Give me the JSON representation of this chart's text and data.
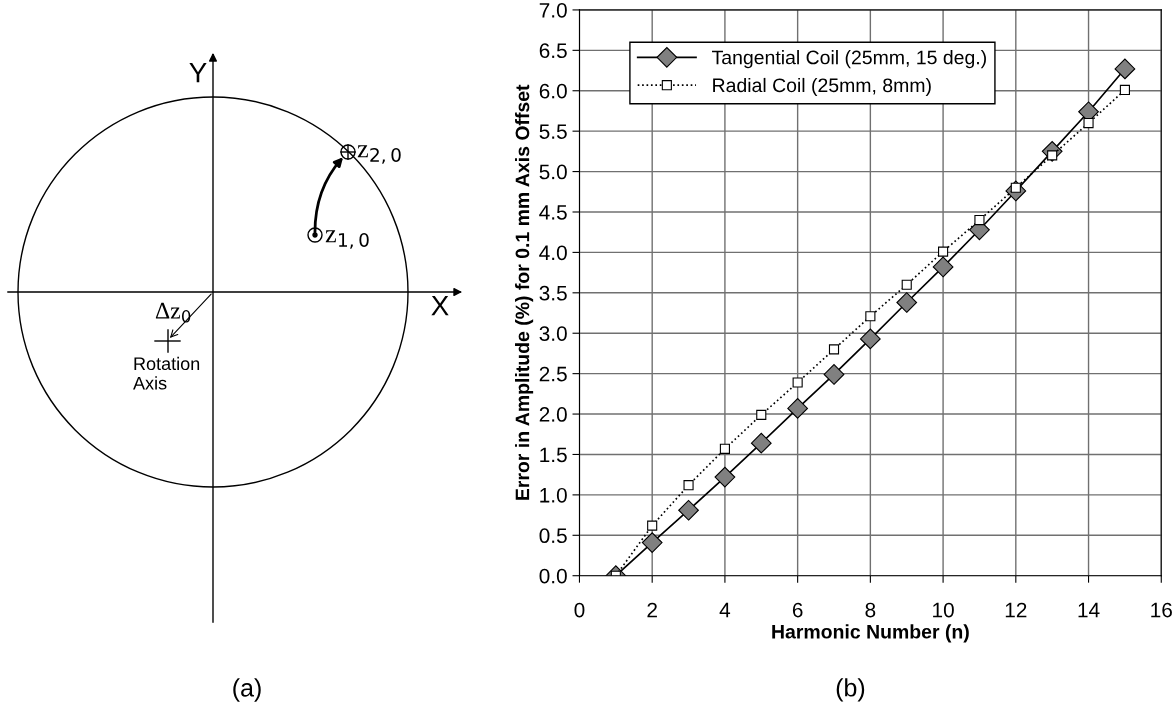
{
  "chart_data": [
    {
      "type": "other",
      "annotations": [
        "Y",
        "X",
        "z$_{2,0}$",
        "z$_{1,0}$",
        "Δz$_{0}$",
        "Rotation\nAxis",
        "(a)"
      ]
    },
    {
      "type": "line",
      "xlabel": "Harmonic Number (n)",
      "ylabel": "Error in Amplitude (%) for 0.1 mm Axis Offset",
      "annotations": [
        "(b)"
      ],
      "x": [
        1,
        2,
        3,
        4,
        5,
        6,
        7,
        8,
        9,
        10,
        11,
        12,
        13,
        14,
        15
      ],
      "series": [
        {
          "name": "Tangential Coil (25mm, 15 deg.)",
          "color": "#808080",
          "marker": "diamond",
          "line_style": "solid",
          "values": [
            0,
            0.41,
            0.81,
            1.22,
            1.64,
            2.07,
            2.49,
            2.93,
            3.38,
            3.82,
            4.28,
            4.76,
            5.25,
            5.74,
            6.27
          ]
        },
        {
          "name": "Radial Coil (25mm, 8mm)",
          "color": "#ffffff",
          "marker": "square",
          "line_style": "dotted",
          "values": [
            0,
            0.62,
            1.12,
            1.57,
            1.99,
            2.39,
            2.8,
            3.21,
            3.6,
            4.01,
            4.4,
            4.8,
            5.2,
            5.6,
            6.01
          ]
        }
      ],
      "xlim": [
        0,
        16
      ],
      "xticks": [
        0,
        2,
        4,
        6,
        8,
        10,
        12,
        14,
        16
      ],
      "ylim": [
        0,
        7
      ],
      "yticks": [
        {
          "value": 0,
          "label": "0.0"
        },
        {
          "value": 0.5,
          "label": "0.5"
        },
        {
          "value": 1,
          "label": "1.0"
        },
        {
          "value": 1.5,
          "label": "1.5"
        },
        {
          "value": 2,
          "label": "2.0"
        },
        {
          "value": 2.5,
          "label": "2.5"
        },
        {
          "value": 3,
          "label": "3.0"
        },
        {
          "value": 3.5,
          "label": "3.5"
        },
        {
          "value": 4,
          "label": "4.0"
        },
        {
          "value": 4.5,
          "label": "4.5"
        },
        {
          "value": 5,
          "label": "5.0"
        },
        {
          "value": 5.5,
          "label": "5.5"
        },
        {
          "value": 6,
          "label": "6.0"
        },
        {
          "value": 6.5,
          "label": "6.5"
        },
        {
          "value": 7,
          "label": "7.0"
        }
      ],
      "grid": true,
      "legend": "top left"
    }
  ]
}
